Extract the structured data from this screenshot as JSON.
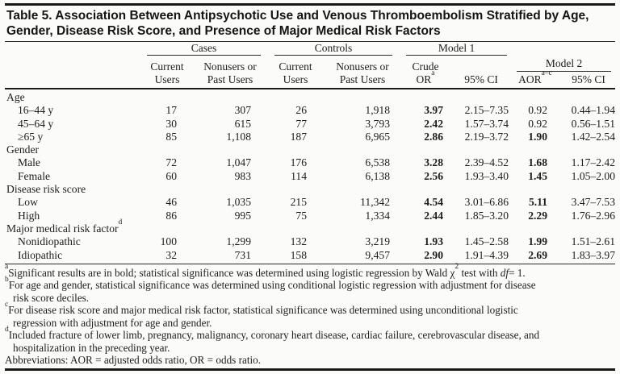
{
  "colors": {
    "ink": "#1b1a18",
    "rule": "#191917",
    "background": "#fbfbf9"
  },
  "title_lines": [
    "Table 5. Association Between Antipsychotic Use and Venous Thromboembolism Stratified by Age,",
    "Gender, Disease Risk Score, and Presence of Major Medical Risk Factors"
  ],
  "table": {
    "group_headers": [
      {
        "label": "Cases"
      },
      {
        "label": "Controls"
      },
      {
        "label": "Model 1"
      },
      {
        "label": "Model 2"
      }
    ],
    "columns": [
      {
        "lines": [
          "Current",
          "Users"
        ]
      },
      {
        "lines": [
          "Nonusers or",
          "Past Users"
        ]
      },
      {
        "lines": [
          "Current",
          "Users"
        ]
      },
      {
        "lines": [
          "Nonusers or",
          "Past Users"
        ]
      },
      {
        "lines": [
          "Crude",
          "OR"
        ],
        "sup": "a"
      },
      {
        "lines": [
          "95% CI"
        ]
      },
      {
        "lines": [
          "AOR"
        ],
        "sup": "a–c"
      },
      {
        "lines": [
          "95% CI"
        ]
      }
    ],
    "rows": [
      {
        "type": "group",
        "label": "Age"
      },
      {
        "type": "data",
        "label": "16–44 y",
        "cells": [
          "17",
          "307",
          "26",
          "1,918",
          "3.97",
          "2.15–7.35",
          "0.92",
          "0.44–1.94"
        ],
        "bold": [
          4
        ]
      },
      {
        "type": "data",
        "label": "45–64 y",
        "cells": [
          "30",
          "615",
          "77",
          "3,793",
          "2.42",
          "1.57–3.74",
          "0.92",
          "0.56–1.51"
        ],
        "bold": [
          4
        ]
      },
      {
        "type": "data",
        "label": "≥65 y",
        "cells": [
          "85",
          "1,108",
          "187",
          "6,965",
          "2.86",
          "2.19–3.72",
          "1.90",
          "1.42–2.54"
        ],
        "bold": [
          4,
          6
        ]
      },
      {
        "type": "group",
        "label": "Gender"
      },
      {
        "type": "data",
        "label": "Male",
        "cells": [
          "72",
          "1,047",
          "176",
          "6,538",
          "3.28",
          "2.39–4.52",
          "1.68",
          "1.17–2.42"
        ],
        "bold": [
          4,
          6
        ]
      },
      {
        "type": "data",
        "label": "Female",
        "cells": [
          "60",
          "983",
          "114",
          "6,138",
          "2.56",
          "1.93–3.40",
          "1.45",
          "1.05–2.00"
        ],
        "bold": [
          4,
          6
        ]
      },
      {
        "type": "group",
        "label": "Disease risk score"
      },
      {
        "type": "data",
        "label": "Low",
        "cells": [
          "46",
          "1,035",
          "215",
          "11,342",
          "4.54",
          "3.01–6.86",
          "5.11",
          "3.47–7.53"
        ],
        "bold": [
          4,
          6
        ]
      },
      {
        "type": "data",
        "label": "High",
        "cells": [
          "86",
          "995",
          "75",
          "1,334",
          "2.44",
          "1.85–3.20",
          "2.29",
          "1.76–2.96"
        ],
        "bold": [
          4,
          6
        ]
      },
      {
        "type": "group",
        "label": "Major medical risk factor",
        "sup": "d"
      },
      {
        "type": "data",
        "label": "Nonidiopathic",
        "cells": [
          "100",
          "1,299",
          "132",
          "3,219",
          "1.93",
          "1.45–2.58",
          "1.99",
          "1.51–2.61"
        ],
        "bold": [
          4,
          6
        ]
      },
      {
        "type": "data",
        "label": "Idiopathic",
        "cells": [
          "32",
          "731",
          "158",
          "9,457",
          "2.90",
          "1.91–4.39",
          "2.69",
          "1.83–3.97"
        ],
        "bold": [
          4,
          6
        ]
      }
    ]
  },
  "footnotes": [
    {
      "marker": "a",
      "lines": [
        [
          {
            "t": "Significant results are in bold; statistical significance was determined using logistic regression by Wald χ"
          },
          {
            "t": "2",
            "s": "sup"
          },
          {
            "t": " test with "
          },
          {
            "t": "df",
            "s": "i"
          },
          {
            "t": "= 1."
          }
        ]
      ]
    },
    {
      "marker": "b",
      "lines": [
        [
          {
            "t": "For age and gender, statistical significance was determined using conditional logistic regression with adjustment for disease"
          }
        ],
        [
          {
            "t": "risk score deciles."
          }
        ]
      ]
    },
    {
      "marker": "c",
      "lines": [
        [
          {
            "t": "For disease risk score and major medical risk factor, statistical significance was determined using unconditional logistic"
          }
        ],
        [
          {
            "t": "regression with adjustment for age and gender."
          }
        ]
      ]
    },
    {
      "marker": "d",
      "lines": [
        [
          {
            "t": "Included fracture of lower limb, pregnancy, malignancy, coronary heart disease, cardiac failure, cerebrovascular disease, and"
          }
        ],
        [
          {
            "t": "hospitalization in the preceding year."
          }
        ]
      ]
    },
    {
      "marker": null,
      "lines": [
        [
          {
            "t": "Abbreviations: AOR = adjusted odds ratio, OR = odds ratio."
          }
        ]
      ]
    }
  ]
}
